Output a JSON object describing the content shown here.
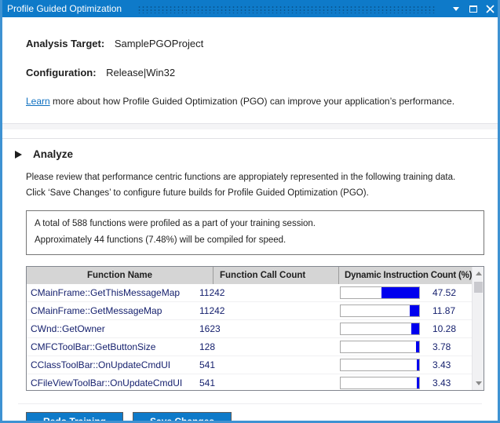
{
  "window": {
    "title": "Profile Guided Optimization"
  },
  "header": {
    "analysis_target_label": "Analysis Target:",
    "analysis_target_value": "SamplePGOProject",
    "configuration_label": "Configuration:",
    "configuration_value": "Release|Win32",
    "learn_link_text": "Learn",
    "learn_text_rest": " more about how Profile Guided Optimization (PGO) can improve your application’s performance."
  },
  "analyze": {
    "section_title": "Analyze",
    "description_line1": "Please review that performance centric functions are appropiately represented in the following training data.",
    "description_line2": "Click ‘Save Changes’ to configure future builds for Profile Guided Optimization (PGO).",
    "summary_line1": "A total of 588 functions were profiled as a part of your training session.",
    "summary_line2": "Approximately 44 functions (7.48%) will be compiled for speed."
  },
  "table": {
    "columns": [
      "Function Name",
      "Function Call Count",
      "Dynamic Instruction Count (%)"
    ],
    "rows": [
      {
        "name": "CMainFrame::GetThisMessageMap",
        "count": "11242",
        "percent": 47.52,
        "percent_label": "47.52"
      },
      {
        "name": "CMainFrame::GetMessageMap",
        "count": "11242",
        "percent": 11.87,
        "percent_label": "11.87"
      },
      {
        "name": "CWnd::GetOwner",
        "count": "1623",
        "percent": 10.28,
        "percent_label": "10.28"
      },
      {
        "name": "CMFCToolBar::GetButtonSize",
        "count": "128",
        "percent": 3.78,
        "percent_label": "3.78"
      },
      {
        "name": "CClassToolBar::OnUpdateCmdUI",
        "count": "541",
        "percent": 3.43,
        "percent_label": "3.43"
      },
      {
        "name": "CFileViewToolBar::OnUpdateCmdUI",
        "count": "541",
        "percent": 3.43,
        "percent_label": "3.43"
      }
    ]
  },
  "footer": {
    "redo_training_label": "Redo Training",
    "save_changes_label": "Save Changes"
  },
  "colors": {
    "titlebar_blue": "#0E7AC9",
    "window_border_blue": "#3E92D2",
    "button_blue": "#0E7AC9",
    "bar_blue": "#0000EE",
    "table_text_navy": "#16216E",
    "link_blue": "#0E70C0",
    "header_gray": "#D5D5D5"
  }
}
